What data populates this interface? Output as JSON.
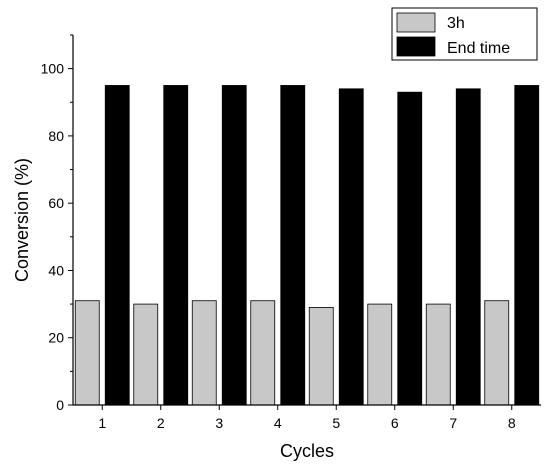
{
  "chart_data": {
    "type": "bar",
    "title": "",
    "xlabel": "Cycles",
    "ylabel": "Conversion (%)",
    "categories": [
      "1",
      "2",
      "3",
      "4",
      "5",
      "6",
      "7",
      "8"
    ],
    "series": [
      {
        "name": "3h",
        "values": [
          31,
          30,
          31,
          31,
          29,
          30,
          30,
          31
        ],
        "color": "#c8c8c8"
      },
      {
        "name": "End time",
        "values": [
          95,
          95,
          95,
          95,
          94,
          93,
          94,
          95
        ],
        "color": "#000000"
      }
    ],
    "ylim": [
      0,
      110
    ],
    "yticks": [
      0,
      20,
      40,
      60,
      80,
      100
    ],
    "grid": false,
    "legend_position": "top-right"
  }
}
